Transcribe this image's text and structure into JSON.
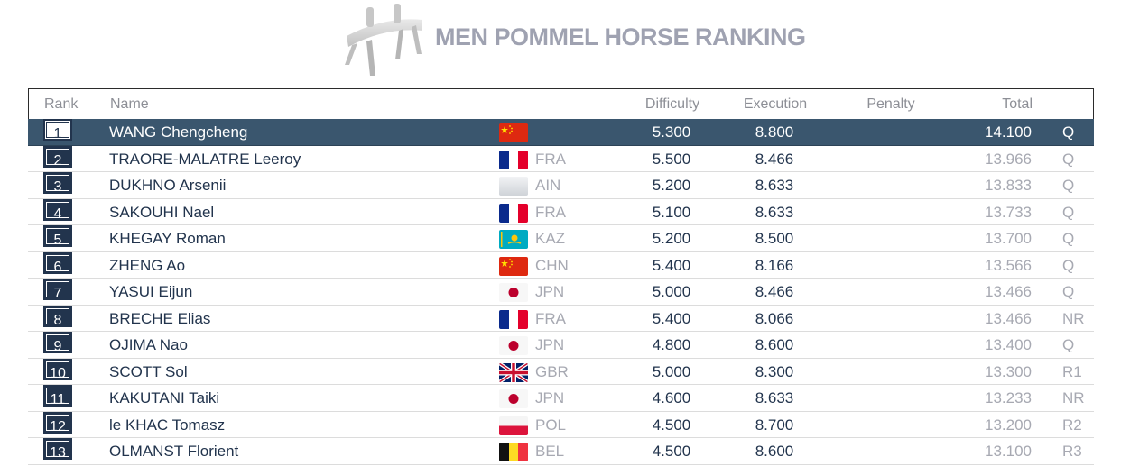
{
  "title": "MEN POMMEL HORSE RANKING",
  "columns": {
    "rank": "Rank",
    "name": "Name",
    "difficulty": "Difficulty",
    "execution": "Execution",
    "penalty": "Penalty",
    "total": "Total"
  },
  "rows": [
    {
      "rank": "1",
      "name": "WANG Chengcheng",
      "flag": "china-flag",
      "noc": "",
      "difficulty": "5.300",
      "execution": "8.800",
      "penalty": "",
      "total": "14.100",
      "q": "Q"
    },
    {
      "rank": "2",
      "name": "TRAORE-MALATRE Leeroy",
      "flag": "france-flag",
      "noc": "FRA",
      "difficulty": "5.500",
      "execution": "8.466",
      "penalty": "",
      "total": "13.966",
      "q": "Q"
    },
    {
      "rank": "3",
      "name": "DUKHNO Arsenii",
      "flag": "neutral-flag",
      "noc": "AIN",
      "difficulty": "5.200",
      "execution": "8.633",
      "penalty": "",
      "total": "13.833",
      "q": "Q"
    },
    {
      "rank": "4",
      "name": "SAKOUHI Nael",
      "flag": "france-flag",
      "noc": "FRA",
      "difficulty": "5.100",
      "execution": "8.633",
      "penalty": "",
      "total": "13.733",
      "q": "Q"
    },
    {
      "rank": "5",
      "name": "KHEGAY Roman",
      "flag": "kazakhstan-flag",
      "noc": "KAZ",
      "difficulty": "5.200",
      "execution": "8.500",
      "penalty": "",
      "total": "13.700",
      "q": "Q"
    },
    {
      "rank": "6",
      "name": "ZHENG Ao",
      "flag": "china-flag",
      "noc": "CHN",
      "difficulty": "5.400",
      "execution": "8.166",
      "penalty": "",
      "total": "13.566",
      "q": "Q"
    },
    {
      "rank": "7",
      "name": "YASUI Eijun",
      "flag": "japan-flag",
      "noc": "JPN",
      "difficulty": "5.000",
      "execution": "8.466",
      "penalty": "",
      "total": "13.466",
      "q": "Q"
    },
    {
      "rank": "8",
      "name": "BRECHE Elias",
      "flag": "france-flag",
      "noc": "FRA",
      "difficulty": "5.400",
      "execution": "8.066",
      "penalty": "",
      "total": "13.466",
      "q": "NR"
    },
    {
      "rank": "9",
      "name": "OJIMA Nao",
      "flag": "japan-flag",
      "noc": "JPN",
      "difficulty": "4.800",
      "execution": "8.600",
      "penalty": "",
      "total": "13.400",
      "q": "Q"
    },
    {
      "rank": "10",
      "name": "SCOTT Sol",
      "flag": "uk-flag",
      "noc": "GBR",
      "difficulty": "5.000",
      "execution": "8.300",
      "penalty": "",
      "total": "13.300",
      "q": "R1"
    },
    {
      "rank": "11",
      "name": "KAKUTANI Taiki",
      "flag": "japan-flag",
      "noc": "JPN",
      "difficulty": "4.600",
      "execution": "8.633",
      "penalty": "",
      "total": "13.233",
      "q": "NR"
    },
    {
      "rank": "12",
      "name": "le KHAC Tomasz",
      "flag": "poland-flag",
      "noc": "POL",
      "difficulty": "4.500",
      "execution": "8.700",
      "penalty": "",
      "total": "13.200",
      "q": "R2"
    },
    {
      "rank": "13",
      "name": "OLMANST Florient",
      "flag": "belgium-flag",
      "noc": "BEL",
      "difficulty": "4.500",
      "execution": "8.600",
      "penalty": "",
      "total": "13.100",
      "q": "R3"
    }
  ],
  "colors": {
    "header_row": "#3a566e",
    "rank_box": "#22344d",
    "title": "#9fa2b1",
    "muted": "#a7a9b2"
  }
}
